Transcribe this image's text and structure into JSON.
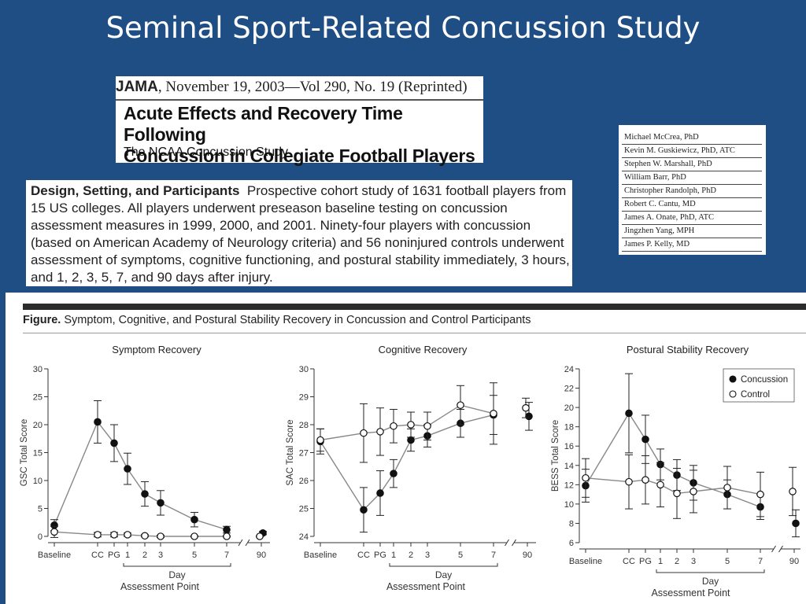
{
  "slide": {
    "title": "Seminal Sport-Related Concussion Study"
  },
  "header": {
    "journal": "JAMA",
    "citation": ", November 19, 2003—Vol 290, No. 19 (Reprinted)",
    "title_line1": "Acute Effects and Recovery Time Following",
    "title_line2": "Concussion in Collegiate Football Players",
    "subtitle": "The NCAA Concussion Study"
  },
  "authors": [
    "Michael McCrea, PhD",
    "Kevin M. Guskiewicz, PhD, ATC",
    "Stephen W. Marshall, PhD",
    "William Barr, PhD",
    "Christopher Randolph, PhD",
    "Robert C. Cantu, MD",
    "James A. Onate, PhD, ATC",
    "Jingzhen Yang, MPH",
    "James P. Kelly, MD"
  ],
  "design": {
    "label": "Design, Setting, and Participants",
    "text": "Prospective cohort study of 1631 football players from 15 US colleges. All players underwent preseason baseline testing on concussion assessment measures in 1999, 2000, and 2001. Ninety-four players with concussion (based on American Academy of Neurology criteria) and 56 noninjured controls underwent assessment of symptoms, cognitive functioning, and postural stability immediately, 3 hours, and 1, 2, 3, 5, 7, and 90 days after injury."
  },
  "figure": {
    "label": "Figure.",
    "caption": "Symptom, Cognitive, and Postural Stability Recovery in Concussion and Control Participants"
  },
  "chart_data": [
    {
      "type": "line",
      "title": "Symptom Recovery",
      "xlabel": "Assessment Point",
      "x_sublabel": "Day",
      "ylabel": "GSC Total Score",
      "categories": [
        "Baseline",
        "CC",
        "PG",
        "1",
        "2",
        "3",
        "5",
        "7",
        "90"
      ],
      "ylim": [
        0,
        30
      ],
      "yticks": [
        0,
        5,
        10,
        15,
        20,
        25,
        30
      ],
      "series": [
        {
          "name": "Concussion",
          "marker": "filled",
          "values": [
            2.0,
            20.5,
            16.7,
            12.1,
            7.6,
            6.0,
            3.0,
            1.2,
            0.6
          ],
          "err": [
            1.0,
            3.8,
            3.3,
            2.8,
            2.2,
            2.2,
            1.3,
            0.6,
            0.3
          ]
        },
        {
          "name": "Control",
          "marker": "open",
          "values": [
            0.8,
            0.3,
            0.3,
            0.3,
            0.1,
            0.0,
            0.0,
            0.0,
            0.0
          ],
          "err": [
            1.0,
            0.4,
            0.4,
            0.3,
            0.2,
            0.2,
            0.1,
            0.1,
            0.1
          ]
        }
      ]
    },
    {
      "type": "line",
      "title": "Cognitive Recovery",
      "xlabel": "Assessment Point",
      "x_sublabel": "Day",
      "ylabel": "SAC Total Score",
      "categories": [
        "Baseline",
        "CC",
        "PG",
        "1",
        "2",
        "3",
        "5",
        "7",
        "90"
      ],
      "ylim": [
        24,
        30
      ],
      "yticks": [
        24,
        25,
        26,
        27,
        28,
        29,
        30
      ],
      "series": [
        {
          "name": "Concussion",
          "marker": "filled",
          "values": [
            27.4,
            24.95,
            25.55,
            26.25,
            27.45,
            27.6,
            28.05,
            28.35,
            28.3
          ],
          "err": [
            0.45,
            0.8,
            0.8,
            0.5,
            0.4,
            0.4,
            0.5,
            0.7,
            0.5
          ]
        },
        {
          "name": "Control",
          "marker": "open",
          "values": [
            27.45,
            27.7,
            27.75,
            27.95,
            28.0,
            27.95,
            28.7,
            28.4,
            28.6
          ],
          "err": [
            0.4,
            1.05,
            0.85,
            0.6,
            0.45,
            0.5,
            0.7,
            1.1,
            0.35
          ]
        }
      ]
    },
    {
      "type": "line",
      "title": "Postural Stability Recovery",
      "xlabel": "Assessment Point",
      "x_sublabel": "Day",
      "ylabel": "BESS Total Score",
      "categories": [
        "Baseline",
        "CC",
        "PG",
        "1",
        "2",
        "3",
        "5",
        "7",
        "90"
      ],
      "ylim": [
        6,
        24
      ],
      "yticks": [
        6,
        8,
        10,
        12,
        14,
        16,
        18,
        20,
        22,
        24
      ],
      "legend_position": "top-right",
      "series": [
        {
          "name": "Concussion",
          "marker": "filled",
          "values": [
            11.9,
            19.4,
            16.7,
            14.1,
            13.0,
            12.2,
            11.0,
            9.7,
            8.0
          ],
          "err": [
            1.7,
            4.1,
            2.5,
            1.6,
            1.6,
            1.8,
            1.5,
            1.3,
            1.4
          ]
        },
        {
          "name": "Control",
          "marker": "open",
          "values": [
            12.7,
            12.3,
            12.5,
            12.0,
            11.1,
            11.3,
            11.7,
            11.0,
            11.3
          ],
          "err": [
            2.0,
            2.8,
            2.5,
            2.3,
            2.6,
            2.2,
            2.2,
            2.3,
            2.5
          ]
        }
      ]
    }
  ]
}
